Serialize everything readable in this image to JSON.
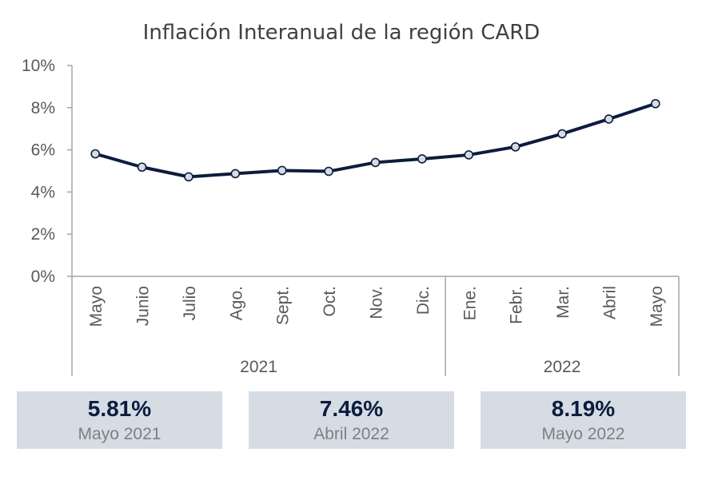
{
  "chart_data": {
    "type": "line",
    "title": "Inflación Interanual de la región CARD",
    "categories": [
      "Mayo",
      "Junio",
      "Julio",
      "Ago.",
      "Sept.",
      "Oct.",
      "Nov.",
      "Dic.",
      "Ene.",
      "Febr.",
      "Mar.",
      "Abril",
      "Mayo"
    ],
    "groups": [
      {
        "label": "2021",
        "count": 8
      },
      {
        "label": "2022",
        "count": 5
      }
    ],
    "series": [
      {
        "values": [
          5.81,
          5.18,
          4.72,
          4.87,
          5.02,
          4.98,
          5.4,
          5.57,
          5.76,
          6.14,
          6.76,
          7.46,
          8.19
        ]
      }
    ],
    "yticks": [
      "0%",
      "2%",
      "4%",
      "6%",
      "8%",
      "10%"
    ],
    "ylim": [
      0,
      10
    ],
    "grid": false,
    "colors": {
      "line": "#0c1c3d",
      "marker_fill": "#d6dce4"
    }
  },
  "stats": [
    {
      "value": "5.81%",
      "label": "Mayo 2021"
    },
    {
      "value": "7.46%",
      "label": "Abril 2022"
    },
    {
      "value": "8.19%",
      "label": "Mayo 2022"
    }
  ]
}
